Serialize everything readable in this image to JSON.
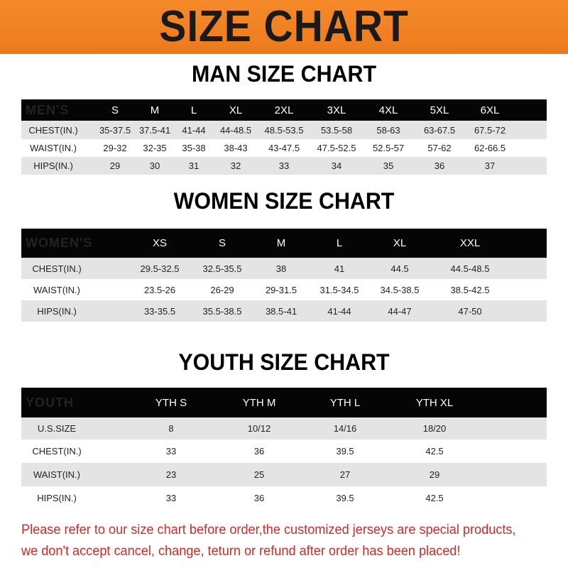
{
  "banner_title": "SIZE CHART",
  "men": {
    "title": "MAN SIZE CHART",
    "header": [
      "MEN'S",
      "S",
      "M",
      "L",
      "XL",
      "2XL",
      "3XL",
      "4XL",
      "5XL",
      "6XL"
    ],
    "rows": [
      [
        "CHEST(IN.)",
        "35-37.5",
        "37.5-41",
        "41-44",
        "44-48.5",
        "48.5-53.5",
        "53.5-58",
        "58-63",
        "63-67.5",
        "67.5-72"
      ],
      [
        "WAIST(IN.)",
        "29-32",
        "32-35",
        "35-38",
        "38-43",
        "43-47.5",
        "47.5-52.5",
        "52.5-57",
        "57-62",
        "62-66.5"
      ],
      [
        "HIPS(IN.)",
        "29",
        "30",
        "31",
        "32",
        "33",
        "34",
        "35",
        "36",
        "37"
      ]
    ]
  },
  "women": {
    "title": "WOMEN SIZE CHART",
    "header": [
      "WOMEN'S",
      "XS",
      "S",
      "M",
      "L",
      "XL",
      "XXL"
    ],
    "rows": [
      [
        "CHEST(IN.)",
        "29.5-32.5",
        "32.5-35.5",
        "38",
        "41",
        "44.5",
        "44.5-48.5"
      ],
      [
        "WAIST(IN.)",
        "23.5-26",
        "26-29",
        "29-31.5",
        "31.5-34.5",
        "34.5-38.5",
        "38.5-42.5"
      ],
      [
        "HIPS(IN.)",
        "33-35.5",
        "35.5-38.5",
        "38.5-41",
        "41-44",
        "44-47",
        "47-50"
      ]
    ]
  },
  "youth": {
    "title": "YOUTH SIZE CHART",
    "header": [
      "YOUTH",
      "YTH S",
      "YTH M",
      "YTH L",
      "YTH XL"
    ],
    "rows": [
      [
        "U.S.SIZE",
        "8",
        "10/12",
        "14/16",
        "18/20"
      ],
      [
        "CHEST(IN.)",
        "33",
        "36",
        "39.5",
        "42.5"
      ],
      [
        "WAIST(IN.)",
        "23",
        "25",
        "27",
        "29"
      ],
      [
        "HIPS(IN.)",
        "33",
        "36",
        "39.5",
        "42.5"
      ]
    ]
  },
  "notice": [
    "Please refer to our size chart before order,the customized jerseys are special products,",
    "we don't accept cancel, change, teturn or refund after order has been placed!"
  ],
  "colors": {
    "banner": "#ef7f22",
    "header_row": "#050505",
    "stripe": "#e4e4e4",
    "notice": "#c4302a"
  }
}
